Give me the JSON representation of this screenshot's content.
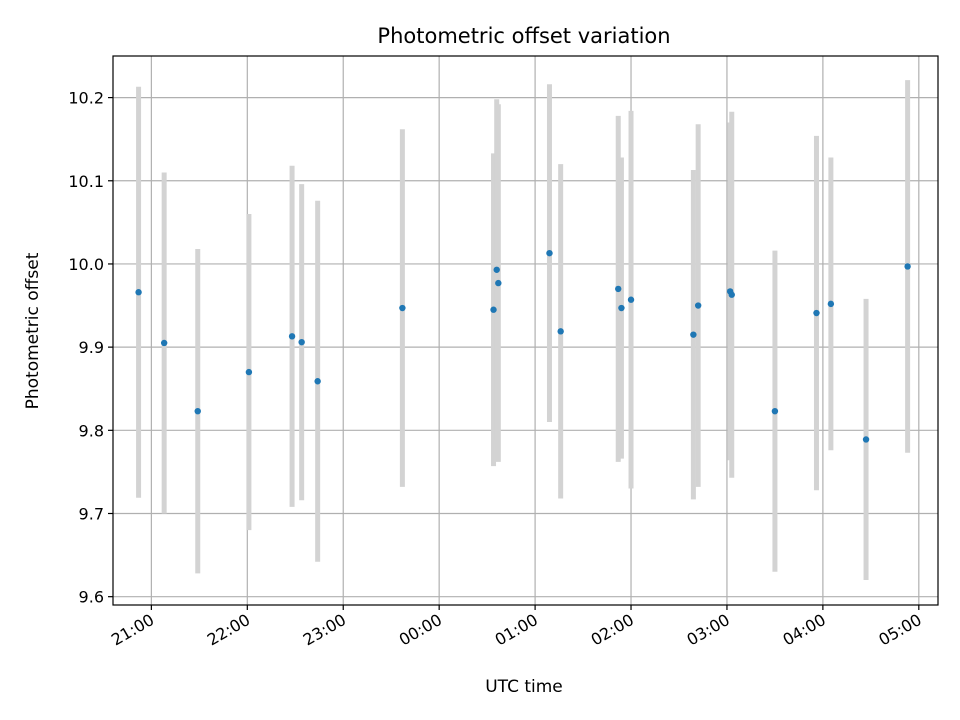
{
  "chart_data": {
    "type": "scatter",
    "title": "Photometric offset variation",
    "xlabel": "UTC time",
    "ylabel": "Photometric offset",
    "grid": true,
    "x_axis_kind": "time",
    "x_range": [
      "2000-01-01T20:36",
      "2000-01-02T05:12"
    ],
    "ylim": [
      9.59,
      10.25
    ],
    "x_ticks": [
      {
        "t": "2000-01-01T21:00",
        "label": "21:00"
      },
      {
        "t": "2000-01-01T22:00",
        "label": "22:00"
      },
      {
        "t": "2000-01-01T23:00",
        "label": "23:00"
      },
      {
        "t": "2000-01-02T00:00",
        "label": "00:00"
      },
      {
        "t": "2000-01-02T01:00",
        "label": "01:00"
      },
      {
        "t": "2000-01-02T02:00",
        "label": "02:00"
      },
      {
        "t": "2000-01-02T03:00",
        "label": "03:00"
      },
      {
        "t": "2000-01-02T04:00",
        "label": "04:00"
      },
      {
        "t": "2000-01-02T05:00",
        "label": "05:00"
      }
    ],
    "y_ticks": [
      {
        "v": 9.6,
        "label": "9.6"
      },
      {
        "v": 9.7,
        "label": "9.7"
      },
      {
        "v": 9.8,
        "label": "9.8"
      },
      {
        "v": 9.9,
        "label": "9.9"
      },
      {
        "v": 10.0,
        "label": "10.0"
      },
      {
        "v": 10.1,
        "label": "10.1"
      },
      {
        "v": 10.2,
        "label": "10.2"
      }
    ],
    "points": [
      {
        "t": "2000-01-01T20:52",
        "y": 9.966,
        "yerr": 0.247
      },
      {
        "t": "2000-01-01T21:08",
        "y": 9.905,
        "yerr": 0.205
      },
      {
        "t": "2000-01-01T21:29",
        "y": 9.823,
        "yerr": 0.195
      },
      {
        "t": "2000-01-01T22:01",
        "y": 9.87,
        "yerr": 0.19
      },
      {
        "t": "2000-01-01T22:28",
        "y": 9.913,
        "yerr": 0.205
      },
      {
        "t": "2000-01-01T22:34",
        "y": 9.906,
        "yerr": 0.19
      },
      {
        "t": "2000-01-01T22:44",
        "y": 9.859,
        "yerr": 0.217
      },
      {
        "t": "2000-01-01T23:37",
        "y": 9.947,
        "yerr": 0.215
      },
      {
        "t": "2000-01-02T00:34",
        "y": 9.945,
        "yerr": 0.188
      },
      {
        "t": "2000-01-02T00:36",
        "y": 9.993,
        "yerr": 0.205
      },
      {
        "t": "2000-01-02T00:37",
        "y": 9.977,
        "yerr": 0.215
      },
      {
        "t": "2000-01-02T01:09",
        "y": 10.013,
        "yerr": 0.203
      },
      {
        "t": "2000-01-02T01:16",
        "y": 9.919,
        "yerr": 0.201
      },
      {
        "t": "2000-01-02T01:52",
        "y": 9.97,
        "yerr": 0.208
      },
      {
        "t": "2000-01-02T01:54",
        "y": 9.947,
        "yerr": 0.181
      },
      {
        "t": "2000-01-02T02:00",
        "y": 9.957,
        "yerr": 0.227
      },
      {
        "t": "2000-01-02T02:39",
        "y": 9.915,
        "yerr": 0.198
      },
      {
        "t": "2000-01-02T02:42",
        "y": 9.95,
        "yerr": 0.218
      },
      {
        "t": "2000-01-02T03:02",
        "y": 9.967,
        "yerr": 0.203
      },
      {
        "t": "2000-01-02T03:03",
        "y": 9.963,
        "yerr": 0.22
      },
      {
        "t": "2000-01-02T03:30",
        "y": 9.823,
        "yerr": 0.193
      },
      {
        "t": "2000-01-02T03:56",
        "y": 9.941,
        "yerr": 0.213
      },
      {
        "t": "2000-01-02T04:05",
        "y": 9.952,
        "yerr": 0.176
      },
      {
        "t": "2000-01-02T04:27",
        "y": 9.789,
        "yerr": 0.169
      },
      {
        "t": "2000-01-02T04:53",
        "y": 9.997,
        "yerr": 0.224
      }
    ],
    "colors": {
      "point": "#1f77b4",
      "errorbar": "#d3d3d3",
      "grid": "#b0b0b0",
      "axes": "#000000"
    }
  }
}
